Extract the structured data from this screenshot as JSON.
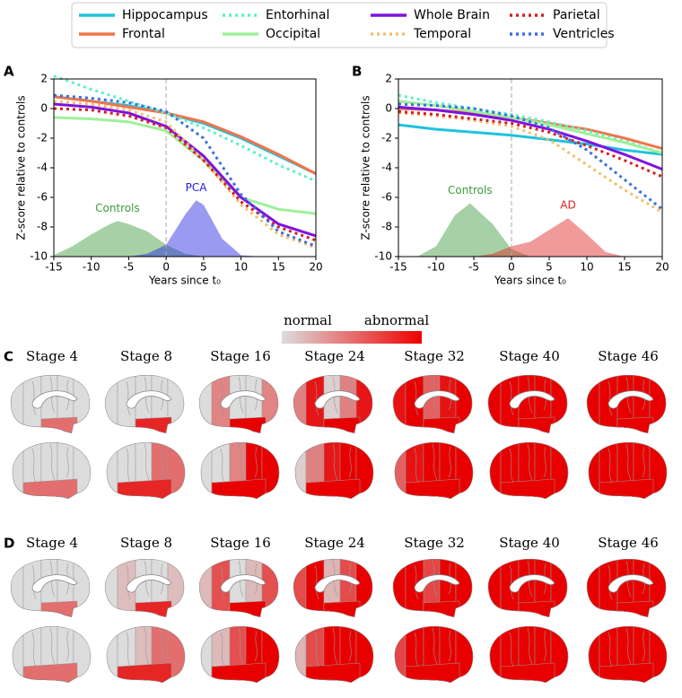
{
  "chart_data": [
    {
      "type": "line",
      "panel": "A",
      "xlabel": "Years since t₀",
      "ylabel": "Z-score relative to controls",
      "x": [
        -15,
        -10,
        -5,
        0,
        5,
        10,
        15,
        20
      ],
      "xlim": [
        -15,
        20
      ],
      "ylim": [
        -10,
        2
      ],
      "xticks": [
        -15,
        -10,
        -5,
        0,
        5,
        10,
        15,
        20
      ],
      "yticks": [
        2,
        0,
        -2,
        -4,
        -6,
        -8,
        -10
      ],
      "vline": 0,
      "series": [
        {
          "name": "Hippocampus",
          "color": "#1fc3dc",
          "style": "solid",
          "values": [
            0.8,
            0.5,
            0.2,
            -0.3,
            -1.0,
            -2.0,
            -3.2,
            -4.4
          ]
        },
        {
          "name": "Frontal",
          "color": "#f0744a",
          "style": "solid",
          "values": [
            0.8,
            0.5,
            0.1,
            -0.3,
            -0.9,
            -1.9,
            -3.1,
            -4.4
          ]
        },
        {
          "name": "Entorhinal",
          "color": "#5ef0c8",
          "style": "dotted",
          "values": [
            2.2,
            1.3,
            0.5,
            -0.3,
            -1.3,
            -2.5,
            -3.8,
            -4.9
          ]
        },
        {
          "name": "Occipital",
          "color": "#9ef09a",
          "style": "solid",
          "values": [
            -0.6,
            -0.7,
            -0.9,
            -1.5,
            -3.5,
            -6.0,
            -6.8,
            -7.1
          ]
        },
        {
          "name": "Whole Brain",
          "color": "#7f12e0",
          "style": "solid",
          "values": [
            0.3,
            0.1,
            -0.3,
            -1.2,
            -3.2,
            -6.0,
            -7.8,
            -8.6
          ]
        },
        {
          "name": "Temporal",
          "color": "#f0c070",
          "style": "dotted",
          "values": [
            0.5,
            0.3,
            -0.1,
            -0.9,
            -3.5,
            -6.5,
            -8.5,
            -9.4
          ]
        },
        {
          "name": "Parietal",
          "color": "#d42020",
          "style": "dotted",
          "values": [
            0.0,
            -0.1,
            -0.5,
            -1.3,
            -3.5,
            -6.3,
            -8.0,
            -8.9
          ]
        },
        {
          "name": "Ventricles",
          "color": "#3a70e0",
          "style": "dotted",
          "values": [
            0.9,
            0.7,
            0.4,
            -0.2,
            -2.0,
            -5.8,
            -8.3,
            -9.3
          ]
        }
      ],
      "distributions": [
        {
          "name": "Controls",
          "color": "#3a9a3a",
          "x": [
            -15,
            -12.5,
            -10,
            -7.5,
            -6.5,
            -5,
            -2.5,
            0,
            2.5,
            5
          ],
          "values": [
            -9.9,
            -9.3,
            -8.5,
            -7.8,
            -7.6,
            -7.8,
            -8.3,
            -9.2,
            -9.8,
            -10
          ]
        },
        {
          "name": "PCA",
          "color": "#2020e0",
          "x": [
            -5,
            -2.5,
            0,
            2.5,
            4,
            5,
            7.5,
            10,
            12.5
          ],
          "values": [
            -10,
            -9.8,
            -9.2,
            -7.2,
            -6.2,
            -6.5,
            -8.8,
            -9.9,
            -10
          ]
        }
      ]
    },
    {
      "type": "line",
      "panel": "B",
      "xlabel": "Years since t₀",
      "ylabel": "Z-score relative to controls",
      "x": [
        -15,
        -10,
        -5,
        0,
        5,
        10,
        15,
        20
      ],
      "xlim": [
        -15,
        20
      ],
      "ylim": [
        -10,
        2
      ],
      "xticks": [
        -15,
        -10,
        -5,
        0,
        5,
        10,
        15,
        20
      ],
      "yticks": [
        2,
        0,
        -2,
        -4,
        -6,
        -8,
        -10
      ],
      "vline": 0,
      "series": [
        {
          "values": [
            -1.1,
            -1.4,
            -1.6,
            -1.8,
            -2.1,
            -2.4,
            -2.8,
            -3.1
          ]
        },
        {
          "values": [
            0.0,
            -0.1,
            -0.3,
            -0.6,
            -1.0,
            -1.4,
            -2.0,
            -2.7
          ]
        },
        {
          "values": [
            0.9,
            0.4,
            0.0,
            -0.4,
            -0.9,
            -1.5,
            -2.2,
            -3.0
          ]
        },
        {
          "values": [
            0.5,
            0.2,
            -0.2,
            -0.6,
            -1.1,
            -1.7,
            -2.3,
            -3.0
          ]
        },
        {
          "values": [
            0.1,
            -0.1,
            -0.4,
            -0.8,
            -1.4,
            -2.2,
            -3.1,
            -4.1
          ]
        },
        {
          "values": [
            -0.3,
            -0.5,
            -0.8,
            -1.2,
            -2.1,
            -3.8,
            -5.5,
            -7.0
          ]
        },
        {
          "values": [
            -0.2,
            -0.4,
            -0.7,
            -1.0,
            -1.6,
            -2.5,
            -3.5,
            -4.6
          ]
        },
        {
          "values": [
            0.3,
            0.2,
            0.0,
            -0.5,
            -1.3,
            -2.8,
            -4.8,
            -6.8
          ]
        }
      ],
      "distributions": [
        {
          "name": "Controls",
          "color": "#3a9a3a",
          "x": [
            -12.5,
            -10,
            -7.5,
            -5.5,
            -2.5,
            0,
            2.5
          ],
          "values": [
            -10,
            -9.3,
            -7.2,
            -6.4,
            -7.8,
            -9.5,
            -10
          ]
        },
        {
          "name": "AD",
          "color": "#e02020",
          "x": [
            -5,
            -2.5,
            0,
            2.5,
            5,
            7.5,
            10,
            12.5,
            15
          ],
          "values": [
            -10,
            -9.8,
            -9.3,
            -9.0,
            -8.2,
            -7.4,
            -8.5,
            -9.7,
            -10
          ]
        }
      ]
    }
  ],
  "colorbar": {
    "low": "normal",
    "high": "abnormal"
  },
  "brain_panels": [
    {
      "label": "C",
      "stages": [
        "Stage 4",
        "Stage 8",
        "Stage 16",
        "Stage 24",
        "Stage 32",
        "Stage 40",
        "Stage 46"
      ]
    },
    {
      "label": "D",
      "stages": [
        "Stage 4",
        "Stage 8",
        "Stage 16",
        "Stage 24",
        "Stage 32",
        "Stage 40",
        "Stage 46"
      ]
    }
  ]
}
